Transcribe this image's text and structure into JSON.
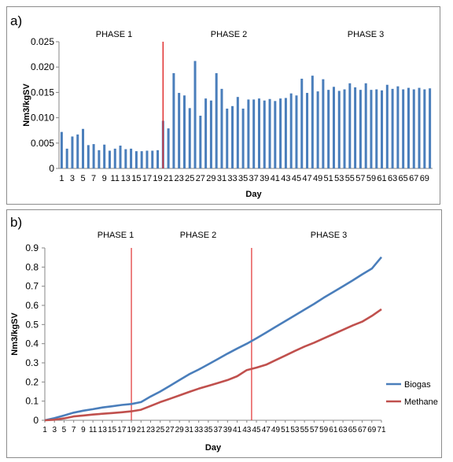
{
  "chart_data": [
    {
      "panel_label": "a)",
      "type": "bar",
      "ylabel": "Nm3/kgSV",
      "xlabel": "Day",
      "ylim": [
        0,
        0.025
      ],
      "yticks": [
        "0",
        "0.005",
        "0.010",
        "0.015",
        "0.020",
        "0.025"
      ],
      "grid": false,
      "phases": [
        "PHASE 1",
        "PHASE 2",
        "PHASE 3"
      ],
      "phase_boundary_day": 19.5,
      "bar_color": "#4a7ebb",
      "line_color": "#e03030",
      "categories": [
        1,
        2,
        3,
        4,
        5,
        6,
        7,
        8,
        9,
        10,
        11,
        12,
        13,
        14,
        15,
        16,
        17,
        18,
        19,
        20,
        21,
        22,
        23,
        24,
        25,
        26,
        27,
        28,
        29,
        30,
        31,
        32,
        33,
        34,
        35,
        36,
        37,
        38,
        39,
        40,
        41,
        42,
        43,
        44,
        45,
        46,
        47,
        48,
        49,
        50,
        51,
        52,
        53,
        54,
        55,
        56,
        57,
        58,
        59,
        60,
        61,
        62,
        63,
        64,
        65,
        66,
        67,
        68,
        69,
        70
      ],
      "tick_labels": [
        "1",
        "3",
        "5",
        "7",
        "9",
        "11",
        "13",
        "15",
        "17",
        "19",
        "21",
        "23",
        "25",
        "27",
        "29",
        "31",
        "33",
        "35",
        "37",
        "39",
        "41",
        "43",
        "45",
        "47",
        "49",
        "51",
        "53",
        "55",
        "57",
        "59",
        "61",
        "63",
        "65",
        "67",
        "69"
      ],
      "values": [
        0.0072,
        0.0039,
        0.0063,
        0.0067,
        0.0078,
        0.0046,
        0.0048,
        0.0036,
        0.0047,
        0.0035,
        0.0039,
        0.0045,
        0.0038,
        0.0039,
        0.0034,
        0.0034,
        0.0035,
        0.0035,
        0.0036,
        0.0094,
        0.0079,
        0.0188,
        0.0149,
        0.0144,
        0.0119,
        0.0212,
        0.0104,
        0.0138,
        0.0134,
        0.0188,
        0.0157,
        0.0118,
        0.0123,
        0.0141,
        0.0118,
        0.0136,
        0.0136,
        0.0138,
        0.0134,
        0.0137,
        0.0133,
        0.0138,
        0.0139,
        0.0148,
        0.0144,
        0.0177,
        0.0149,
        0.0183,
        0.0152,
        0.0176,
        0.0155,
        0.0161,
        0.0153,
        0.0156,
        0.0168,
        0.016,
        0.0155,
        0.0168,
        0.0155,
        0.0156,
        0.0154,
        0.0165,
        0.0157,
        0.0162,
        0.0156,
        0.0159,
        0.0156,
        0.0159,
        0.0156,
        0.0158
      ]
    },
    {
      "panel_label": "b)",
      "type": "line",
      "ylabel": "Nm3/kgSV",
      "xlabel": "Day",
      "ylim": [
        0,
        0.9
      ],
      "yticks": [
        "0",
        "0.1",
        "0.2",
        "0.3",
        "0.4",
        "0.5",
        "0.6",
        "0.7",
        "0.8",
        "0.9"
      ],
      "grid": false,
      "legend_position": "right",
      "phases": [
        "PHASE 1",
        "PHASE 2",
        "PHASE 3"
      ],
      "phase_boundaries_day": [
        19,
        44
      ],
      "line_color": "#e03030",
      "x_tick_labels": [
        "1",
        "3",
        "5",
        "7",
        "9",
        "11",
        "13",
        "15",
        "17",
        "19",
        "21",
        "23",
        "25",
        "27",
        "29",
        "31",
        "33",
        "35",
        "37",
        "39",
        "41",
        "43",
        "45",
        "47",
        "49",
        "51",
        "53",
        "55",
        "57",
        "59",
        "61",
        "63",
        "65",
        "67",
        "69",
        "71"
      ],
      "series": [
        {
          "name": "Biogas",
          "color": "#4a7ebb",
          "x": [
            1,
            3,
            5,
            7,
            9,
            11,
            13,
            15,
            17,
            19,
            21,
            23,
            25,
            27,
            29,
            31,
            33,
            35,
            37,
            39,
            41,
            43,
            45,
            47,
            49,
            51,
            53,
            55,
            57,
            59,
            61,
            63,
            65,
            67,
            69,
            71
          ],
          "values": [
            0.0,
            0.011,
            0.025,
            0.04,
            0.05,
            0.058,
            0.067,
            0.073,
            0.08,
            0.085,
            0.095,
            0.124,
            0.15,
            0.18,
            0.21,
            0.24,
            0.265,
            0.292,
            0.32,
            0.348,
            0.375,
            0.4,
            0.428,
            0.458,
            0.488,
            0.518,
            0.548,
            0.578,
            0.608,
            0.64,
            0.67,
            0.7,
            0.73,
            0.762,
            0.792,
            0.852
          ]
        },
        {
          "name": "Methane",
          "color": "#c0504d",
          "x": [
            1,
            3,
            5,
            7,
            9,
            11,
            13,
            15,
            17,
            19,
            21,
            23,
            25,
            27,
            29,
            31,
            33,
            35,
            37,
            39,
            41,
            43,
            45,
            47,
            49,
            51,
            53,
            55,
            57,
            59,
            61,
            63,
            65,
            67,
            69,
            71
          ],
          "values": [
            0.0,
            0.003,
            0.01,
            0.02,
            0.025,
            0.03,
            0.034,
            0.038,
            0.042,
            0.047,
            0.055,
            0.075,
            0.095,
            0.112,
            0.13,
            0.148,
            0.165,
            0.18,
            0.195,
            0.21,
            0.23,
            0.262,
            0.275,
            0.29,
            0.314,
            0.338,
            0.362,
            0.385,
            0.405,
            0.428,
            0.45,
            0.472,
            0.495,
            0.515,
            0.545,
            0.58
          ]
        }
      ]
    }
  ]
}
